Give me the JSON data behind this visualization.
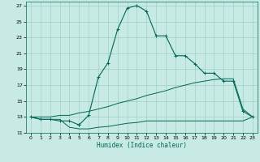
{
  "xlabel": "Humidex (Indice chaleur)",
  "bg_color": "#c8eae4",
  "grid_color": "#9dcfc7",
  "line_color": "#006655",
  "xlim": [
    -0.5,
    23.5
  ],
  "ylim": [
    11,
    27.5
  ],
  "xticks": [
    0,
    1,
    2,
    3,
    4,
    5,
    6,
    7,
    8,
    9,
    10,
    11,
    12,
    13,
    14,
    15,
    16,
    17,
    18,
    19,
    20,
    21,
    22,
    23
  ],
  "yticks": [
    11,
    13,
    15,
    17,
    19,
    21,
    23,
    25,
    27
  ],
  "curve1_x": [
    0,
    1,
    2,
    3,
    4,
    5,
    5,
    6,
    7,
    8,
    9,
    10,
    11,
    12,
    13,
    14,
    15,
    16,
    17,
    18,
    19,
    20,
    21,
    22,
    23
  ],
  "curve1_y": [
    13,
    12.7,
    12.7,
    12.5,
    12.5,
    12.0,
    12.0,
    13.2,
    18.0,
    19.8,
    24.0,
    26.7,
    27.0,
    26.3,
    23.2,
    23.2,
    20.7,
    20.7,
    19.7,
    18.5,
    18.5,
    17.5,
    17.5,
    13.7,
    13.0
  ],
  "curve2_x": [
    0,
    1,
    2,
    3,
    4,
    5,
    6,
    7,
    8,
    9,
    10,
    11,
    12,
    13,
    14,
    15,
    16,
    17,
    18,
    19,
    20,
    21,
    22,
    23
  ],
  "curve2_y": [
    13.0,
    13.0,
    13.0,
    13.2,
    13.2,
    13.5,
    13.7,
    14.0,
    14.3,
    14.7,
    15.0,
    15.3,
    15.7,
    16.0,
    16.3,
    16.7,
    17.0,
    17.3,
    17.5,
    17.7,
    17.8,
    17.8,
    14.0,
    13.0
  ],
  "curve3_x": [
    0,
    1,
    2,
    3,
    4,
    5,
    6,
    7,
    8,
    9,
    10,
    11,
    12,
    13,
    14,
    15,
    16,
    17,
    18,
    19,
    20,
    21,
    22,
    23
  ],
  "curve3_y": [
    13.0,
    12.7,
    12.7,
    12.7,
    11.7,
    11.5,
    11.5,
    11.7,
    11.8,
    12.0,
    12.2,
    12.3,
    12.5,
    12.5,
    12.5,
    12.5,
    12.5,
    12.5,
    12.5,
    12.5,
    12.5,
    12.5,
    12.5,
    13.0
  ]
}
